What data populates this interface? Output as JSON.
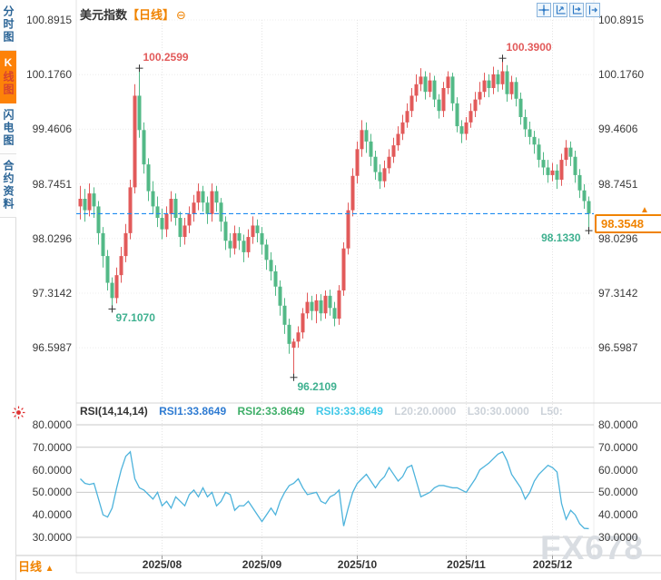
{
  "header": {
    "symbol": "美元指数",
    "period_tag": "【日线】",
    "collapse_glyph": "⊖"
  },
  "sidebar": {
    "items": [
      {
        "label": "分时图",
        "active": false
      },
      {
        "label": "K线图",
        "active": true
      },
      {
        "label": "闪电图",
        "active": false
      },
      {
        "label": "合约资料",
        "active": false
      }
    ]
  },
  "toolbar": {
    "icons": [
      {
        "name": "crosshair-icon"
      },
      {
        "name": "fit-scale-icon"
      },
      {
        "name": "pan-right-icon"
      },
      {
        "name": "jump-latest-icon"
      }
    ]
  },
  "main_chart": {
    "y_ticks": [
      "100.8915",
      "100.1760",
      "99.4606",
      "98.7451",
      "98.0296",
      "97.3142",
      "96.5987"
    ],
    "last_price": "98.3548"
  },
  "rsi": {
    "title": "RSI(14,14,14)",
    "rsi1_label": "RSI1:33.8649",
    "rsi2_label": "RSI2:33.8649",
    "rsi3_label": "RSI3:33.8649",
    "l20_label": "L20:20.0000",
    "l30_label": "L30:30.0000",
    "l50_label": "L50:",
    "y_ticks": [
      "80.0000",
      "70.0000",
      "60.0000",
      "50.0000",
      "40.0000",
      "30.0000"
    ]
  },
  "x_axis": {
    "labels": [
      "2025/08",
      "2025/09",
      "2025/10",
      "2025/11",
      "2025/12"
    ]
  },
  "footer": {
    "period_label": "日线",
    "period_arrow": "▲"
  },
  "watermark": "FX678",
  "colors": {
    "up": "#e25a5a",
    "down": "#53b987",
    "accent_orange": "#f08300",
    "dashed_line_blue": "#1d8cf0",
    "rsi_line": "#4db3dc",
    "grid": "#ececec",
    "month_grid": "#e4e4e4",
    "level_line": "#c9c9c9",
    "frame": "#dddddd",
    "marker_cross": "#333333"
  },
  "chart_data": {
    "type": "candlestick",
    "title": "美元指数 日线",
    "y_ticks": [
      100.8915,
      100.176,
      99.4606,
      98.7451,
      98.0296,
      97.3142,
      96.5987
    ],
    "x_tick_labels": [
      "2025/08",
      "2025/09",
      "2025/10",
      "2025/11",
      "2025/12"
    ],
    "x_tick_candle_index": [
      18,
      40,
      61,
      85,
      104
    ],
    "last_price": 98.3548,
    "candles": [
      [
        98.45,
        98.72,
        98.28,
        98.55
      ],
      [
        98.55,
        98.68,
        98.25,
        98.4
      ],
      [
        98.4,
        98.75,
        98.32,
        98.62
      ],
      [
        98.62,
        98.7,
        98.3,
        98.45
      ],
      [
        98.45,
        98.52,
        97.95,
        98.1
      ],
      [
        98.1,
        98.18,
        97.65,
        97.8
      ],
      [
        97.8,
        97.88,
        97.35,
        97.45
      ],
      [
        97.45,
        97.52,
        97.107,
        97.25
      ],
      [
        97.25,
        97.65,
        97.18,
        97.55
      ],
      [
        97.55,
        97.92,
        97.45,
        97.8
      ],
      [
        97.8,
        98.22,
        97.72,
        98.1
      ],
      [
        98.1,
        98.8,
        98.02,
        98.7
      ],
      [
        98.7,
        100.05,
        98.62,
        99.9
      ],
      [
        99.9,
        100.2599,
        99.35,
        99.45
      ],
      [
        99.45,
        99.55,
        98.88,
        99.0
      ],
      [
        99.0,
        99.08,
        98.52,
        98.65
      ],
      [
        98.65,
        98.78,
        98.35,
        98.45
      ],
      [
        98.45,
        98.58,
        98.18,
        98.3
      ],
      [
        98.3,
        98.42,
        98.02,
        98.15
      ],
      [
        98.15,
        98.45,
        98.05,
        98.35
      ],
      [
        98.35,
        98.65,
        98.25,
        98.55
      ],
      [
        98.55,
        98.62,
        98.2,
        98.3
      ],
      [
        98.3,
        98.38,
        97.92,
        98.05
      ],
      [
        98.05,
        98.3,
        97.95,
        98.2
      ],
      [
        98.2,
        98.45,
        98.1,
        98.35
      ],
      [
        98.35,
        98.6,
        98.25,
        98.5
      ],
      [
        98.5,
        98.75,
        98.4,
        98.65
      ],
      [
        98.65,
        98.72,
        98.38,
        98.5
      ],
      [
        98.5,
        98.58,
        98.22,
        98.35
      ],
      [
        98.35,
        98.75,
        98.25,
        98.65
      ],
      [
        98.65,
        98.72,
        98.38,
        98.5
      ],
      [
        98.5,
        98.56,
        98.12,
        98.25
      ],
      [
        98.25,
        98.32,
        97.88,
        98.0
      ],
      [
        98.0,
        98.1,
        97.78,
        97.9
      ],
      [
        97.9,
        98.2,
        97.82,
        98.1
      ],
      [
        98.1,
        98.18,
        97.88,
        98.0
      ],
      [
        98.0,
        98.08,
        97.72,
        97.85
      ],
      [
        97.85,
        98.15,
        97.78,
        98.05
      ],
      [
        98.05,
        98.32,
        97.96,
        98.2
      ],
      [
        98.2,
        98.28,
        97.98,
        98.1
      ],
      [
        98.1,
        98.18,
        97.82,
        97.95
      ],
      [
        97.95,
        98.02,
        97.62,
        97.75
      ],
      [
        97.75,
        97.85,
        97.48,
        97.6
      ],
      [
        97.6,
        97.68,
        97.28,
        97.4
      ],
      [
        97.4,
        97.48,
        97.02,
        97.15
      ],
      [
        97.15,
        97.25,
        96.78,
        96.9
      ],
      [
        96.9,
        96.98,
        96.52,
        96.65
      ],
      [
        96.6,
        96.72,
        96.2109,
        96.68
      ],
      [
        96.68,
        96.88,
        96.6,
        96.8
      ],
      [
        96.8,
        97.12,
        96.72,
        97.05
      ],
      [
        97.05,
        97.32,
        96.98,
        97.2
      ],
      [
        97.2,
        97.28,
        96.96,
        97.08
      ],
      [
        97.08,
        97.3,
        96.92,
        97.22
      ],
      [
        97.22,
        97.3,
        96.95,
        97.05
      ],
      [
        97.05,
        97.35,
        96.98,
        97.28
      ],
      [
        97.28,
        97.36,
        97.02,
        97.12
      ],
      [
        97.12,
        97.2,
        96.88,
        96.98
      ],
      [
        96.98,
        97.42,
        96.9,
        97.35
      ],
      [
        97.35,
        97.98,
        97.28,
        97.9
      ],
      [
        97.9,
        98.5,
        97.82,
        98.4
      ],
      [
        98.4,
        98.95,
        98.32,
        98.85
      ],
      [
        98.85,
        99.3,
        98.75,
        99.2
      ],
      [
        99.2,
        99.58,
        99.1,
        99.45
      ],
      [
        99.45,
        99.55,
        99.15,
        99.3
      ],
      [
        99.3,
        99.4,
        98.98,
        99.1
      ],
      [
        99.1,
        99.18,
        98.8,
        98.9
      ],
      [
        98.9,
        99.0,
        98.68,
        98.78
      ],
      [
        98.78,
        99.05,
        98.7,
        98.95
      ],
      [
        98.95,
        99.2,
        98.88,
        99.1
      ],
      [
        99.1,
        99.35,
        99.02,
        99.25
      ],
      [
        99.25,
        99.5,
        99.18,
        99.4
      ],
      [
        99.4,
        99.65,
        99.32,
        99.55
      ],
      [
        99.55,
        99.8,
        99.48,
        99.7
      ],
      [
        99.7,
        100.0,
        99.62,
        99.9
      ],
      [
        99.9,
        100.18,
        99.82,
        100.05
      ],
      [
        100.05,
        100.26,
        99.96,
        100.15
      ],
      [
        100.15,
        100.22,
        99.85,
        99.95
      ],
      [
        99.95,
        100.2,
        99.88,
        100.1
      ],
      [
        100.1,
        100.16,
        99.75,
        99.85
      ],
      [
        99.85,
        99.92,
        99.6,
        99.7
      ],
      [
        99.7,
        100.08,
        99.62,
        100.0
      ],
      [
        100.0,
        100.22,
        99.92,
        100.15
      ],
      [
        100.15,
        100.2,
        99.7,
        99.8
      ],
      [
        99.8,
        99.88,
        99.42,
        99.5
      ],
      [
        99.5,
        99.58,
        99.28,
        99.4
      ],
      [
        99.4,
        99.62,
        99.32,
        99.55
      ],
      [
        99.55,
        99.8,
        99.48,
        99.7
      ],
      [
        99.7,
        99.95,
        99.62,
        99.85
      ],
      [
        99.85,
        100.08,
        99.78,
        99.95
      ],
      [
        99.95,
        100.2,
        99.88,
        100.1
      ],
      [
        100.1,
        100.18,
        99.88,
        100.0
      ],
      [
        100.0,
        100.28,
        99.92,
        100.18
      ],
      [
        100.18,
        100.24,
        99.95,
        100.05
      ],
      [
        100.05,
        100.39,
        99.98,
        100.22
      ],
      [
        100.22,
        100.3,
        99.82,
        99.92
      ],
      [
        99.92,
        100.16,
        99.85,
        100.08
      ],
      [
        100.08,
        100.14,
        99.76,
        99.86
      ],
      [
        99.86,
        99.94,
        99.52,
        99.62
      ],
      [
        99.62,
        99.72,
        99.36,
        99.46
      ],
      [
        99.46,
        99.56,
        99.26,
        99.36
      ],
      [
        99.36,
        99.44,
        99.14,
        99.26
      ],
      [
        99.26,
        99.34,
        98.96,
        99.06
      ],
      [
        99.06,
        99.16,
        98.86,
        98.96
      ],
      [
        98.96,
        99.06,
        98.76,
        98.86
      ],
      [
        98.86,
        99.02,
        98.78,
        98.92
      ],
      [
        98.92,
        99.0,
        98.68,
        98.8
      ],
      [
        98.8,
        99.14,
        98.72,
        99.06
      ],
      [
        99.06,
        99.32,
        98.98,
        99.22
      ],
      [
        99.22,
        99.3,
        98.98,
        99.1
      ],
      [
        99.1,
        99.18,
        98.76,
        98.86
      ],
      [
        98.86,
        98.94,
        98.56,
        98.66
      ],
      [
        98.66,
        98.74,
        98.42,
        98.52
      ],
      [
        98.52,
        98.58,
        98.133,
        98.3548
      ]
    ],
    "markers": [
      {
        "index": 13,
        "side": "high",
        "price": 100.2599,
        "label": "100.2599",
        "color": "red"
      },
      {
        "index": 93,
        "side": "high",
        "price": 100.39,
        "label": "100.3900",
        "color": "red"
      },
      {
        "index": 7,
        "side": "low",
        "price": 97.107,
        "label": "97.1070",
        "color": "green"
      },
      {
        "index": 47,
        "side": "low",
        "price": 96.2109,
        "label": "96.2109",
        "color": "green"
      },
      {
        "index": 112,
        "side": "low",
        "price": 98.133,
        "label": "98.1330",
        "color": "green",
        "align": "left"
      }
    ],
    "rsi": {
      "params": "14,14,14",
      "rsi1": 33.8649,
      "rsi2": 33.8649,
      "rsi3": 33.8649,
      "levels": [
        80,
        70,
        50,
        30
      ],
      "y_ticks": [
        80,
        70,
        60,
        50,
        40,
        30
      ],
      "values": [
        56,
        54,
        53.5,
        54,
        47,
        40,
        39,
        43,
        52,
        60,
        66,
        68,
        56,
        52,
        51,
        49,
        47,
        50,
        44,
        46,
        43,
        48,
        46,
        44,
        49,
        51,
        48,
        52,
        48,
        50,
        44,
        46,
        50,
        49,
        42,
        44,
        44,
        46,
        43,
        40,
        37,
        40,
        43,
        40,
        46,
        50,
        53,
        54,
        56,
        52,
        49,
        49.5,
        50,
        46,
        45,
        48,
        49,
        51,
        35,
        43,
        50,
        54,
        56,
        58,
        55,
        52,
        55,
        57,
        61,
        58,
        55,
        57,
        61,
        62,
        55,
        48,
        49,
        50,
        52,
        53,
        53,
        52.5,
        52,
        52,
        51,
        50,
        53,
        56,
        60,
        61.5,
        63,
        65,
        67,
        68,
        64,
        58,
        55,
        52,
        47,
        50,
        55,
        58,
        60,
        62,
        61,
        59,
        45,
        38,
        42,
        40,
        36,
        34,
        33.8649
      ]
    }
  }
}
